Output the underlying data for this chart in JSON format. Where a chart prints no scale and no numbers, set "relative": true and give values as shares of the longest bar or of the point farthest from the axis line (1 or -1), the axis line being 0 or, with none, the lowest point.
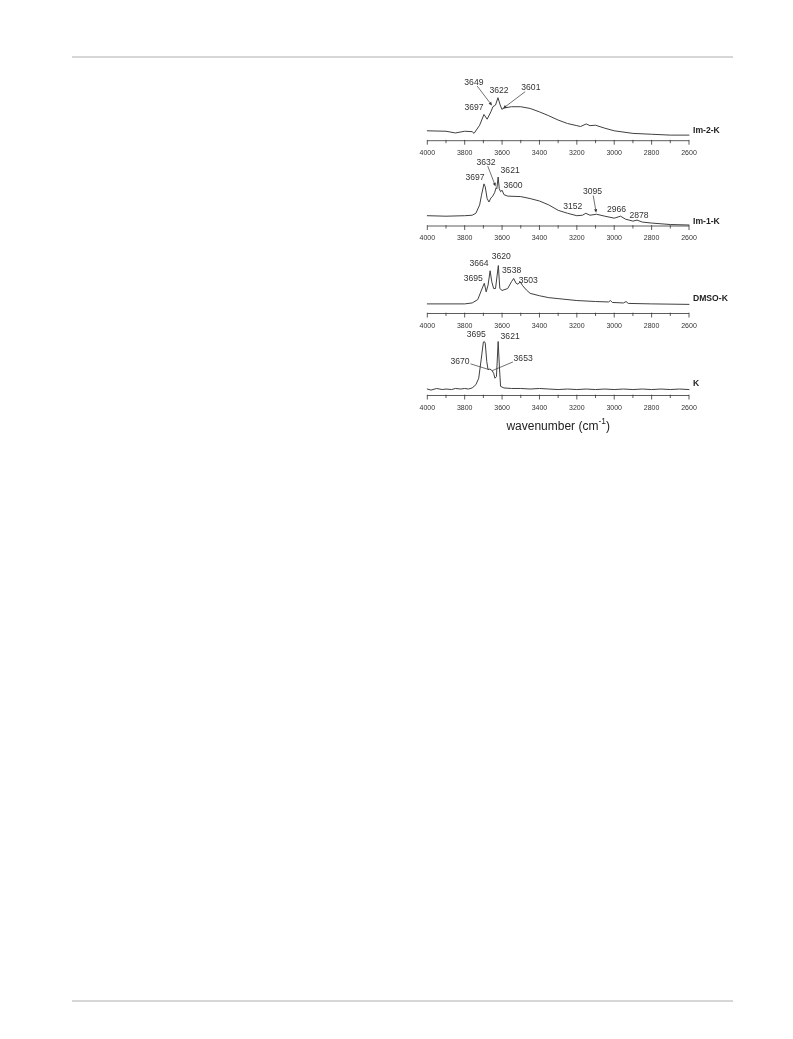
{
  "chart_data": [
    {
      "type": "line",
      "relative": true,
      "xlim": [
        4000,
        2600
      ],
      "xticks": [
        4000,
        {
          "value": 3900,
          "label": null
        },
        3800,
        {
          "value": 3700,
          "label": null
        },
        3600,
        {
          "value": 3500,
          "label": null
        },
        3400,
        {
          "value": 3300,
          "label": null
        },
        3200,
        {
          "value": 3100,
          "label": null
        },
        3000,
        {
          "value": 2900,
          "label": null
        },
        2800,
        {
          "value": 2700,
          "label": null
        },
        2600
      ],
      "series": [
        {
          "name": "Im-2-K",
          "color": "#404040",
          "x": [
            4000,
            3900,
            3850,
            3800,
            3760,
            3750,
            3720,
            3697,
            3680,
            3660,
            3649,
            3635,
            3622,
            3610,
            3601,
            3590,
            3550,
            3500,
            3450,
            3400,
            3350,
            3300,
            3250,
            3200,
            3180,
            3150,
            3130,
            3100,
            3050,
            3000,
            2900,
            2800,
            2700,
            2600
          ],
          "values": [
            0.23,
            0.22,
            0.18,
            0.22,
            0.21,
            0.17,
            0.36,
            0.61,
            0.5,
            0.67,
            0.79,
            0.83,
            1.0,
            0.83,
            0.73,
            0.76,
            0.79,
            0.79,
            0.75,
            0.67,
            0.58,
            0.48,
            0.4,
            0.35,
            0.33,
            0.39,
            0.35,
            0.36,
            0.29,
            0.23,
            0.17,
            0.15,
            0.13,
            0.13
          ]
        }
      ],
      "annotations": [
        {
          "text": "3649",
          "x": 3649,
          "y": 0.79
        },
        {
          "text": "3622",
          "x": 3622,
          "y": 1.0
        },
        {
          "text": "3601",
          "x": 3601,
          "y": 0.73
        },
        {
          "text": "3697",
          "x": 3697,
          "y": 0.61
        }
      ]
    },
    {
      "type": "line",
      "relative": true,
      "xlim": [
        4000,
        2600
      ],
      "xticks": [
        4000,
        {
          "value": 3900,
          "label": null
        },
        3800,
        {
          "value": 3700,
          "label": null
        },
        3600,
        {
          "value": 3500,
          "label": null
        },
        3400,
        {
          "value": 3300,
          "label": null
        },
        3200,
        {
          "value": 3100,
          "label": null
        },
        3000,
        {
          "value": 2900,
          "label": null
        },
        2800,
        {
          "value": 2700,
          "label": null
        },
        2600
      ],
      "series": [
        {
          "name": "Im-1-K",
          "color": "#404040",
          "x": [
            4000,
            3900,
            3800,
            3760,
            3740,
            3720,
            3710,
            3697,
            3690,
            3680,
            3670,
            3660,
            3650,
            3640,
            3632,
            3628,
            3621,
            3615,
            3608,
            3600,
            3590,
            3570,
            3500,
            3450,
            3400,
            3350,
            3300,
            3250,
            3200,
            3170,
            3152,
            3130,
            3095,
            3050,
            3000,
            2966,
            2940,
            2900,
            2878,
            2850,
            2800,
            2700,
            2600
          ],
          "values": [
            0.21,
            0.2,
            0.21,
            0.22,
            0.26,
            0.43,
            0.63,
            0.86,
            0.8,
            0.56,
            0.49,
            0.57,
            0.61,
            0.68,
            0.78,
            0.76,
            1.0,
            0.76,
            0.7,
            0.73,
            0.64,
            0.61,
            0.6,
            0.56,
            0.51,
            0.43,
            0.32,
            0.26,
            0.21,
            0.22,
            0.26,
            0.22,
            0.24,
            0.2,
            0.16,
            0.2,
            0.14,
            0.1,
            0.12,
            0.08,
            0.06,
            0.03,
            0.02
          ]
        }
      ],
      "annotations": [
        {
          "text": "3632",
          "x": 3632,
          "y": 0.78
        },
        {
          "text": "3621",
          "x": 3621,
          "y": 1.0
        },
        {
          "text": "3697",
          "x": 3697,
          "y": 0.86
        },
        {
          "text": "3600",
          "x": 3600,
          "y": 0.73
        },
        {
          "text": "3152",
          "x": 3152,
          "y": 0.26
        },
        {
          "text": "3095",
          "x": 3095,
          "y": 0.24
        },
        {
          "text": "2966",
          "x": 2966,
          "y": 0.2
        },
        {
          "text": "2878",
          "x": 2878,
          "y": 0.12
        }
      ]
    },
    {
      "type": "line",
      "relative": true,
      "xlim": [
        4000,
        2600
      ],
      "xticks": [
        4000,
        {
          "value": 3900,
          "label": null
        },
        3800,
        {
          "value": 3700,
          "label": null
        },
        3600,
        {
          "value": 3500,
          "label": null
        },
        3400,
        {
          "value": 3300,
          "label": null
        },
        3200,
        {
          "value": 3100,
          "label": null
        },
        3000,
        {
          "value": 2900,
          "label": null
        },
        2800,
        {
          "value": 2700,
          "label": null
        },
        2600
      ],
      "series": [
        {
          "name": "DMSO-K",
          "color": "#404040",
          "x": [
            4000,
            3800,
            3760,
            3730,
            3710,
            3695,
            3685,
            3675,
            3664,
            3655,
            3645,
            3635,
            3620,
            3612,
            3600,
            3570,
            3550,
            3538,
            3525,
            3515,
            3503,
            3490,
            3470,
            3450,
            3400,
            3350,
            3300,
            3200,
            3100,
            3030,
            3020,
            3010,
            2950,
            2937,
            2925,
            2800,
            2600
          ],
          "values": [
            0.2,
            0.2,
            0.22,
            0.29,
            0.49,
            0.63,
            0.45,
            0.59,
            0.89,
            0.66,
            0.52,
            0.52,
            1.0,
            0.52,
            0.48,
            0.52,
            0.66,
            0.73,
            0.63,
            0.61,
            0.66,
            0.58,
            0.49,
            0.42,
            0.37,
            0.33,
            0.31,
            0.27,
            0.25,
            0.24,
            0.27,
            0.23,
            0.22,
            0.25,
            0.21,
            0.2,
            0.19
          ]
        }
      ],
      "annotations": [
        {
          "text": "3664",
          "x": 3664,
          "y": 0.89
        },
        {
          "text": "3620",
          "x": 3620,
          "y": 1.0
        },
        {
          "text": "3695",
          "x": 3695,
          "y": 0.63
        },
        {
          "text": "3538",
          "x": 3538,
          "y": 0.73
        },
        {
          "text": "3503",
          "x": 3503,
          "y": 0.66
        }
      ]
    },
    {
      "type": "line",
      "relative": true,
      "xlim": [
        4000,
        2600
      ],
      "xticks": [
        4000,
        {
          "value": 3900,
          "label": null
        },
        3800,
        {
          "value": 3700,
          "label": null
        },
        3600,
        {
          "value": 3500,
          "label": null
        },
        3400,
        {
          "value": 3300,
          "label": null
        },
        3200,
        {
          "value": 3100,
          "label": null
        },
        3000,
        {
          "value": 2900,
          "label": null
        },
        2800,
        {
          "value": 2700,
          "label": null
        },
        2600
      ],
      "xlabel": "wavenumber (cm$^{-1}$)",
      "series": [
        {
          "name": "K",
          "color": "#404040",
          "x": [
            4000,
            3980,
            3950,
            3920,
            3900,
            3870,
            3850,
            3820,
            3800,
            3780,
            3760,
            3740,
            3725,
            3712,
            3700,
            3695,
            3690,
            3682,
            3675,
            3665,
            3653,
            3645,
            3638,
            3630,
            3621,
            3614,
            3608,
            3590,
            3550,
            3500,
            3450,
            3400,
            3350,
            3300,
            3250,
            3200,
            3150,
            3100,
            3050,
            3000,
            2950,
            2900,
            2850,
            2800,
            2750,
            2700,
            2650,
            2600
          ],
          "values": [
            0.12,
            0.1,
            0.13,
            0.11,
            0.12,
            0.11,
            0.13,
            0.12,
            0.13,
            0.12,
            0.14,
            0.2,
            0.32,
            0.66,
            0.99,
            1.0,
            0.97,
            0.63,
            0.48,
            0.49,
            0.46,
            0.41,
            0.32,
            0.35,
            1.0,
            0.51,
            0.17,
            0.14,
            0.13,
            0.13,
            0.12,
            0.13,
            0.12,
            0.11,
            0.12,
            0.11,
            0.12,
            0.11,
            0.12,
            0.11,
            0.12,
            0.11,
            0.12,
            0.11,
            0.12,
            0.11,
            0.12,
            0.11
          ]
        }
      ],
      "annotations": [
        {
          "text": "3695",
          "x": 3695,
          "y": 1.0
        },
        {
          "text": "3621",
          "x": 3621,
          "y": 1.0
        },
        {
          "text": "3670",
          "x": 3670,
          "y": 0.48
        },
        {
          "text": "3653",
          "x": 3653,
          "y": 0.46
        }
      ]
    }
  ]
}
